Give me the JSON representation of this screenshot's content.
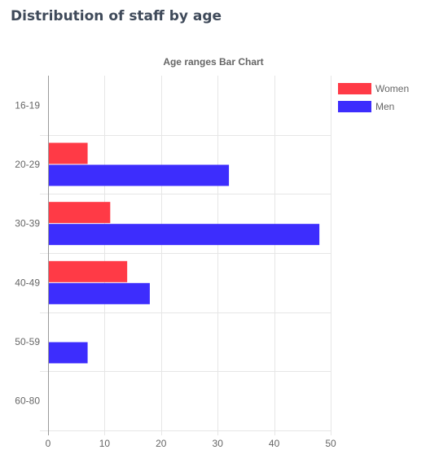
{
  "page": {
    "title": "Distribution of staff by age"
  },
  "chart_data": {
    "type": "bar",
    "orientation": "horizontal",
    "title": "Age ranges Bar Chart",
    "categories": [
      "16-19",
      "20-29",
      "30-39",
      "40-49",
      "50-59",
      "60-80"
    ],
    "series": [
      {
        "name": "Women",
        "color": "#ff3a46",
        "values": [
          0,
          7,
          11,
          14,
          0,
          0
        ]
      },
      {
        "name": "Men",
        "color": "#3d2dfd",
        "values": [
          0,
          32,
          48,
          18,
          7,
          0
        ]
      }
    ],
    "xlim": [
      0,
      50
    ],
    "xticks": [
      0,
      10,
      20,
      30,
      40,
      50
    ],
    "grid": true,
    "legend_position": "right"
  }
}
